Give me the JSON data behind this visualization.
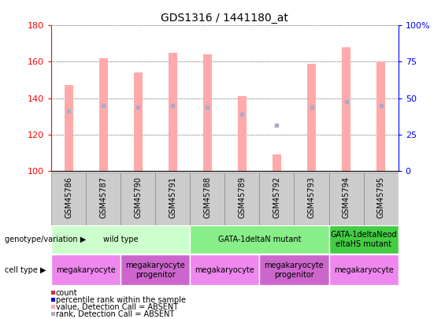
{
  "title": "GDS1316 / 1441180_at",
  "samples": [
    "GSM45786",
    "GSM45787",
    "GSM45790",
    "GSM45791",
    "GSM45788",
    "GSM45789",
    "GSM45792",
    "GSM45793",
    "GSM45794",
    "GSM45795"
  ],
  "bar_values": [
    147,
    162,
    154,
    165,
    164,
    141,
    109,
    159,
    168,
    160
  ],
  "bar_absent": [
    true,
    true,
    true,
    true,
    true,
    true,
    true,
    true,
    true,
    true
  ],
  "rank_values": [
    133,
    136,
    135,
    136,
    135,
    131,
    125,
    135,
    138,
    136
  ],
  "rank_absent": [
    true,
    true,
    true,
    true,
    true,
    true,
    true,
    true,
    true,
    true
  ],
  "ylim_left": [
    100,
    180
  ],
  "ylim_right": [
    0,
    100
  ],
  "right_ticks": [
    0,
    25,
    50,
    75,
    100
  ],
  "right_tick_labels": [
    "0",
    "25",
    "50",
    "75",
    "100%"
  ],
  "left_ticks": [
    100,
    120,
    140,
    160,
    180
  ],
  "bar_color_present": "#cc3333",
  "bar_color_absent": "#ffaaaa",
  "rank_color_present": "#0000cc",
  "rank_color_absent": "#aaaacc",
  "genotype_groups": [
    {
      "label": "wild type",
      "start": 0,
      "end": 4,
      "color": "#ccffcc"
    },
    {
      "label": "GATA-1deltaN mutant",
      "start": 4,
      "end": 8,
      "color": "#88ee88"
    },
    {
      "label": "GATA-1deltaNeod\neltaHS mutant",
      "start": 8,
      "end": 10,
      "color": "#44cc44"
    }
  ],
  "cell_type_groups": [
    {
      "label": "megakaryocyte",
      "start": 0,
      "end": 2,
      "color": "#ee88ee"
    },
    {
      "label": "megakaryocyte\nprogenitor",
      "start": 2,
      "end": 4,
      "color": "#cc66cc"
    },
    {
      "label": "megakaryocyte",
      "start": 4,
      "end": 6,
      "color": "#ee88ee"
    },
    {
      "label": "megakaryocyte\nprogenitor",
      "start": 6,
      "end": 8,
      "color": "#cc66cc"
    },
    {
      "label": "megakaryocyte",
      "start": 8,
      "end": 10,
      "color": "#ee88ee"
    }
  ],
  "legend_items": [
    {
      "label": "count",
      "color": "#cc3333"
    },
    {
      "label": "percentile rank within the sample",
      "color": "#0000cc"
    },
    {
      "label": "value, Detection Call = ABSENT",
      "color": "#ffaaaa"
    },
    {
      "label": "rank, Detection Call = ABSENT",
      "color": "#aaaacc"
    }
  ],
  "bar_width": 0.25,
  "sample_box_color": "#cccccc",
  "sample_box_edge": "#888888",
  "left_label_color": "red",
  "right_label_color": "blue",
  "title_fontsize": 10,
  "tick_fontsize": 8,
  "label_fontsize": 8,
  "annot_fontsize": 7
}
